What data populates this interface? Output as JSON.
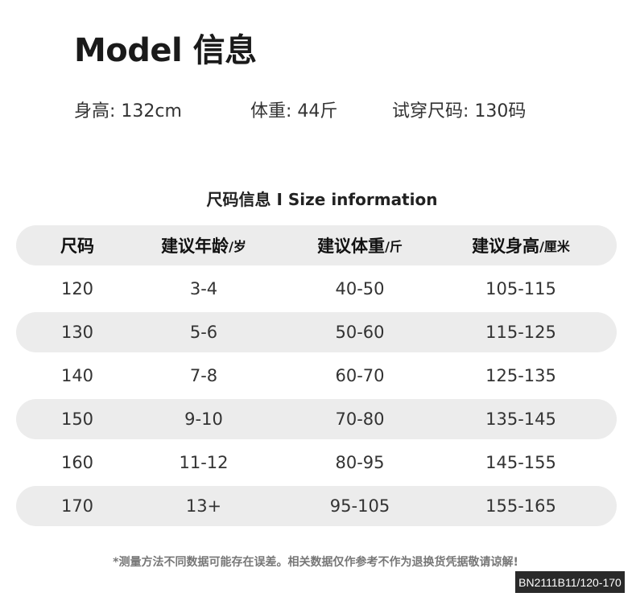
{
  "title": "Model 信息",
  "model": {
    "height": "身高: 132cm",
    "weight": "体重: 44斤",
    "size": "试穿尺码: 130码"
  },
  "table": {
    "title": "尺码信息 I Size information",
    "headers": [
      {
        "label": "尺码",
        "unit": ""
      },
      {
        "label": "建议年龄",
        "unit": "/岁"
      },
      {
        "label": "建议体重",
        "unit": "/斤"
      },
      {
        "label": "建议身高",
        "unit": "/厘米"
      }
    ],
    "rows": [
      [
        "120",
        "3-4",
        "40-50",
        "105-115"
      ],
      [
        "130",
        "5-6",
        "50-60",
        "115-125"
      ],
      [
        "140",
        "7-8",
        "60-70",
        "125-135"
      ],
      [
        "150",
        "9-10",
        "70-80",
        "135-145"
      ],
      [
        "160",
        "11-12",
        "80-95",
        "145-155"
      ],
      [
        "170",
        "13+",
        "95-105",
        "155-165"
      ]
    ]
  },
  "note": "*测量方法不同数据可能存在误差。相关数据仅作参考不作为退换货凭据敬请谅解!",
  "badge": "BN2111B11/120-170",
  "colors": {
    "band": "#ececec",
    "badge": "#2a2a2a"
  }
}
